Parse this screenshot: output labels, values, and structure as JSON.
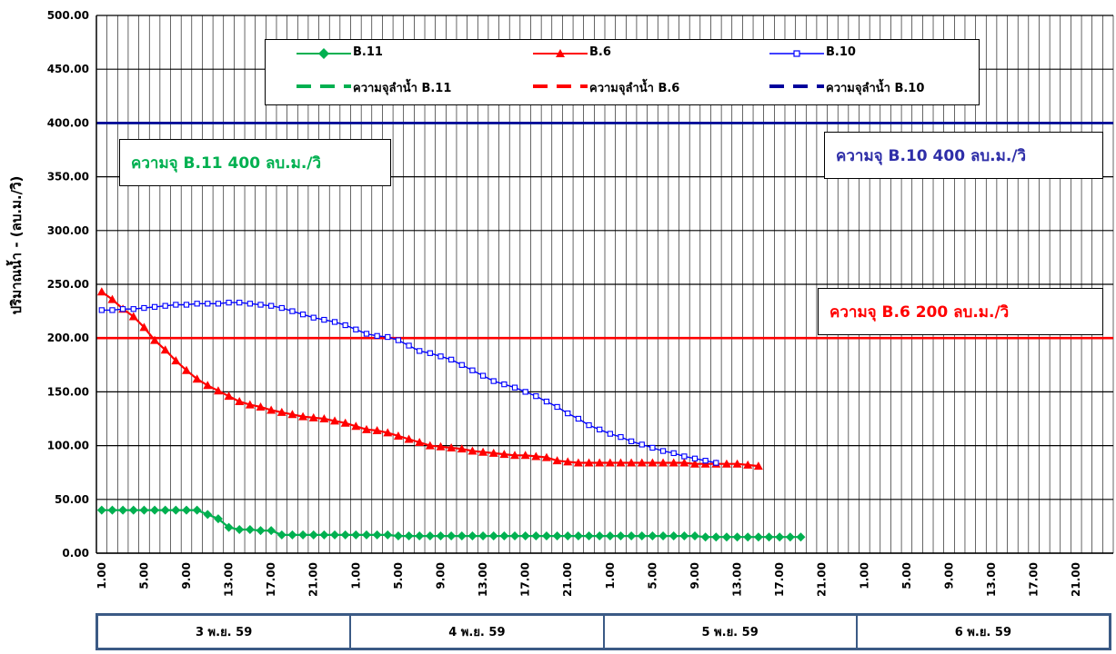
{
  "chart_data": {
    "type": "line",
    "ylabel": "ปริมาณน้ำ - (ลบ.ม./วิ)",
    "ylim": [
      0,
      500
    ],
    "y_ticks": [
      "0.00",
      "50.00",
      "100.00",
      "150.00",
      "200.00",
      "250.00",
      "300.00",
      "350.00",
      "400.00",
      "450.00",
      "500.00"
    ],
    "x_tick_labels": [
      "1.00",
      "5.00",
      "9.00",
      "13.00",
      "17.00",
      "21.00",
      "1.00",
      "5.00",
      "9.00",
      "13.00",
      "17.00",
      "21.00",
      "1.00",
      "5.00",
      "9.00",
      "13.00",
      "17.00",
      "21.00",
      "1.00",
      "5.00",
      "9.00",
      "13.00",
      "17.00",
      "21.00"
    ],
    "x_positions": 96,
    "grid": true,
    "legend_position": "top",
    "series": [
      {
        "name": "B.11",
        "color": "#00b050",
        "marker": "diamond",
        "values": [
          40,
          40,
          40,
          40,
          40,
          40,
          40,
          40,
          40,
          40,
          36,
          32,
          24,
          22,
          22,
          21,
          21,
          17,
          17,
          17,
          17,
          17,
          17,
          17,
          17,
          17,
          17,
          17,
          16,
          16,
          16,
          16,
          16,
          16,
          16,
          16,
          16,
          16,
          16,
          16,
          16,
          16,
          16,
          16,
          16,
          16,
          16,
          16,
          16,
          16,
          16,
          16,
          16,
          16,
          16,
          16,
          16,
          15,
          15,
          15,
          15,
          15,
          15,
          15,
          15,
          15,
          15
        ]
      },
      {
        "name": "B.6",
        "color": "#ff0000",
        "marker": "triangle",
        "values": [
          243,
          236,
          227,
          220,
          210,
          198,
          189,
          179,
          170,
          162,
          156,
          151,
          146,
          141,
          138,
          136,
          133,
          131,
          129,
          127,
          126,
          125,
          123,
          121,
          118,
          115,
          114,
          112,
          109,
          106,
          103,
          100,
          99,
          98,
          97,
          95,
          94,
          93,
          92,
          91,
          91,
          90,
          89,
          86,
          85,
          84,
          84,
          84,
          84,
          84,
          84,
          84,
          84,
          84,
          84,
          84,
          83,
          83,
          83,
          83,
          83,
          82,
          81
        ]
      },
      {
        "name": "B.10",
        "color": "#0000ff",
        "marker": "square",
        "values": [
          226,
          226,
          227,
          227,
          228,
          229,
          230,
          231,
          231,
          232,
          232,
          232,
          233,
          233,
          232,
          231,
          230,
          228,
          225,
          222,
          219,
          217,
          215,
          212,
          208,
          204,
          202,
          201,
          198,
          193,
          188,
          186,
          183,
          180,
          175,
          170,
          165,
          160,
          157,
          154,
          150,
          146,
          141,
          136,
          130,
          125,
          119,
          115,
          111,
          108,
          104,
          101,
          98,
          95,
          93,
          90,
          88,
          86,
          84
        ]
      }
    ],
    "capacity_lines": [
      {
        "name": "ความจุลำน้ำ B.11",
        "color": "#00b050",
        "value": 400
      },
      {
        "name": "ความจุลำน้ำ B.6",
        "color": "#ff0000",
        "value": 200
      },
      {
        "name": "ความจุลำน้ำ B.10",
        "color": "#00009c",
        "value": 400
      }
    ],
    "annotations": [
      {
        "text": "ความจุ B.11  400 ลบ.ม./วิ",
        "color": "#00b050"
      },
      {
        "text": "ความจุ B.10  400 ลบ.ม./วิ",
        "color": "#2e2ea8"
      },
      {
        "text": "ความจุ B.6  200 ลบ.ม./วิ",
        "color": "#ff0000"
      }
    ],
    "date_labels": [
      "3 พ.ย. 59",
      "4 พ.ย. 59",
      "5 พ.ย. 59",
      "6  พ.ย. 59"
    ]
  }
}
